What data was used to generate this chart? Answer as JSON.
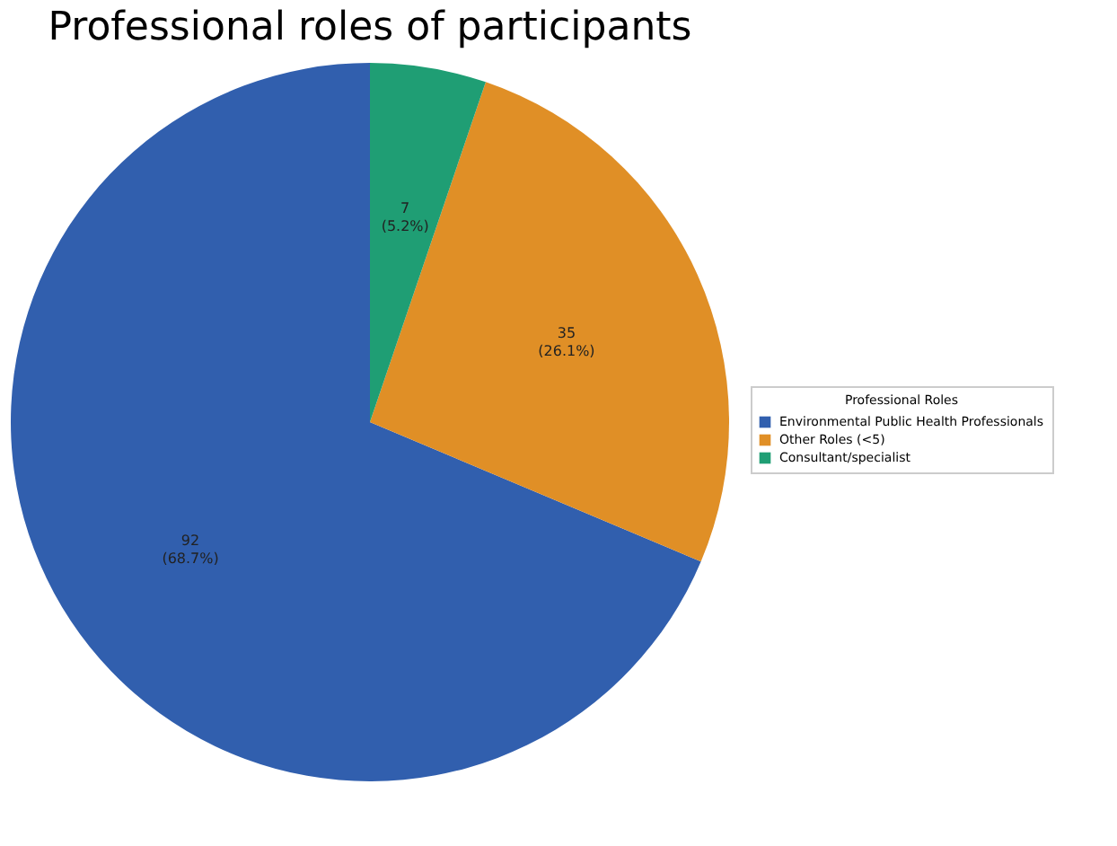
{
  "chart_data": {
    "type": "pie",
    "title": "Professional roles of participants",
    "legend_title": "Professional Roles",
    "categories": [
      "Environmental Public Health Professionals",
      "Other Roles (<5)",
      "Consultant/specialist"
    ],
    "values": [
      92,
      35,
      7
    ],
    "colors": [
      "#315fae",
      "#e08f26",
      "#1f9e74"
    ],
    "value_labels": [
      "92\n(68.7%)",
      "35\n(26.1%)",
      "7\n(5.2%)"
    ],
    "legend": "right"
  }
}
